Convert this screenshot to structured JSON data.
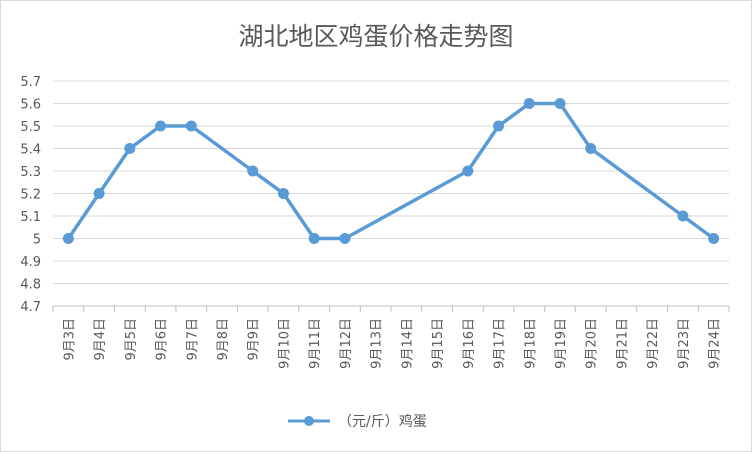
{
  "chart_data": {
    "type": "line",
    "title": "湖北地区鸡蛋价格走势图",
    "categories": [
      "9月3日",
      "9月4日",
      "9月5日",
      "9月6日",
      "9月7日",
      "9月8日",
      "9月9日",
      "9月10日",
      "9月11日",
      "9月12日",
      "9月13日",
      "9月14日",
      "9月15日",
      "9月16日",
      "9月17日",
      "9月18日",
      "9月19日",
      "9月20日",
      "9月21日",
      "9月22日",
      "9月23日",
      "9月24日"
    ],
    "series": [
      {
        "name": "（元/斤）鸡蛋",
        "color": "#5b9bd5",
        "values": [
          5.0,
          5.2,
          5.4,
          5.5,
          5.5,
          null,
          5.3,
          5.2,
          5.0,
          5.0,
          null,
          null,
          null,
          5.3,
          5.5,
          5.6,
          5.6,
          5.4,
          null,
          null,
          5.1,
          5.0
        ]
      }
    ],
    "ylim": [
      4.7,
      5.7
    ],
    "yticks": [
      "4.7",
      "4.8",
      "4.9",
      "5",
      "5.1",
      "5.2",
      "5.3",
      "5.4",
      "5.5",
      "5.6",
      "5.7"
    ],
    "grid": true,
    "legend": "bottom",
    "xlabel": "",
    "ylabel": ""
  }
}
